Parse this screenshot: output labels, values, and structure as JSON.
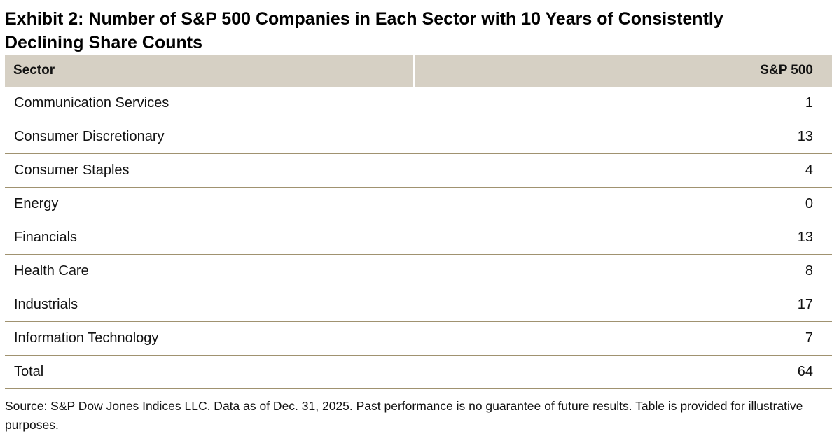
{
  "title": "Exhibit 2: Number of S&P 500 Companies in Each Sector with 10 Years of Consistently Declining Share Counts",
  "table": {
    "columns": [
      "Sector",
      "S&P 500"
    ],
    "rows": [
      {
        "sector": "Communication Services",
        "value": "1"
      },
      {
        "sector": "Consumer Discretionary",
        "value": "13"
      },
      {
        "sector": "Consumer Staples",
        "value": "4"
      },
      {
        "sector": "Energy",
        "value": "0"
      },
      {
        "sector": "Financials",
        "value": "13"
      },
      {
        "sector": "Health Care",
        "value": "8"
      },
      {
        "sector": "Industrials",
        "value": "17"
      },
      {
        "sector": "Information Technology",
        "value": "7"
      },
      {
        "sector": "Total",
        "value": "64"
      }
    ]
  },
  "source": "Source: S&P Dow Jones Indices LLC. Data as of Dec. 31, 2025. Past performance is no guarantee of future results. Table is provided for illustrative purposes.",
  "colors": {
    "header_bg": "#d6d0c4",
    "row_divider": "#a09270",
    "text": "#111111"
  },
  "chart_data": {
    "type": "table",
    "title": "Exhibit 2: Number of S&P 500 Companies in Each Sector with 10 Years of Consistently Declining Share Counts",
    "columns": [
      "Sector",
      "S&P 500"
    ],
    "categories": [
      "Communication Services",
      "Consumer Discretionary",
      "Consumer Staples",
      "Energy",
      "Financials",
      "Health Care",
      "Industrials",
      "Information Technology"
    ],
    "values": [
      1,
      13,
      4,
      0,
      13,
      8,
      17,
      7
    ],
    "total": 64,
    "source_note": "Source: S&P Dow Jones Indices LLC. Data as of Dec. 31, 2025. Past performance is no guarantee of future results. Table is provided for illustrative purposes."
  }
}
